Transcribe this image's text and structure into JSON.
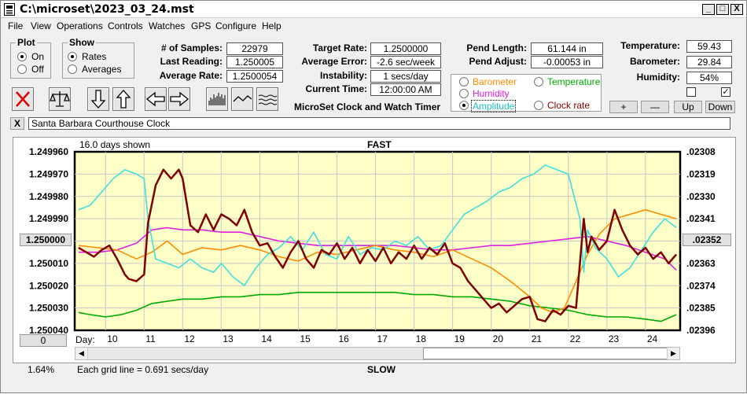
{
  "window": {
    "title": "C:\\microset\\2023_03_24.mst"
  },
  "titlebar_buttons": [
    "_",
    "□",
    "X"
  ],
  "menu": [
    "File",
    "View",
    "Operations",
    "Controls",
    "Watches",
    "GPS",
    "Configure",
    "Help"
  ],
  "plot_group": {
    "label": "Plot",
    "options": [
      "On",
      "Off"
    ],
    "selected": "On"
  },
  "show_group": {
    "label": "Show",
    "options": [
      "Rates",
      "Averages"
    ],
    "selected": "Rates"
  },
  "stats": {
    "samples_label": "# of Samples:",
    "samples": "22979",
    "last_reading_label": "Last Reading:",
    "last_reading": "1.250005",
    "average_rate_label": "Average Rate:",
    "average_rate": "1.2500054"
  },
  "target": {
    "target_rate_label": "Target Rate:",
    "target_rate": "1.2500000",
    "average_error_label": "Average Error:",
    "average_error": "-2.6 sec/week",
    "instability_label": "Instability:",
    "instability": "1 secs/day",
    "current_time_label": "Current Time:",
    "current_time": "12:00:00 AM"
  },
  "app_caption": "MicroSet Clock and Watch Timer",
  "pend": {
    "length_label": "Pend Length:",
    "length": "61.144 in",
    "adjust_label": "Pend Adjust:",
    "adjust": "-0.00053 in"
  },
  "env": {
    "temperature_label": "Temperature:",
    "temperature": "59.43",
    "barometer_label": "Barometer:",
    "barometer": "29.84",
    "humidity_label": "Humidity:",
    "humidity": "54%"
  },
  "env_checks": {
    "left_checked": false,
    "right_checked": true
  },
  "secondary_options": {
    "barometer": "Barometer",
    "temperature": "Temperature",
    "humidity": "Humidity",
    "amplitude": "Amplitude",
    "clock_rate": "Clock rate",
    "selected": "Amplitude"
  },
  "scale_buttons": {
    "plus": "+",
    "minus": "—",
    "up": "Up",
    "down": "Down"
  },
  "clock_name": "Santa Barbara Courthouse Clock",
  "close_x": "X",
  "plot": {
    "days_shown": "16.0 days shown",
    "top_label": "FAST",
    "bottom_label": "SLOW",
    "grid_note": "Each grid line = 0.691 secs/day",
    "percent": "1.64%",
    "left_button": "0",
    "center_left_button": "1.250000",
    "center_right_button": ".02352",
    "day_label": "Day:"
  },
  "colors": {
    "rate": "#800000",
    "barometer": "#ff8c00",
    "temperature": "#00aa00",
    "humidity": "#e020e0",
    "amplitude": "#40e0e0",
    "plot_bg": "#ffffc8"
  },
  "chart_data": {
    "type": "line",
    "xlabel": "Day:",
    "x_ticks": [
      10,
      11,
      12,
      13,
      14,
      15,
      16,
      17,
      18,
      19,
      20,
      21,
      22,
      23,
      24
    ],
    "xlim": [
      9.2,
      24.9
    ],
    "left_ticks": [
      "1.249960",
      "1.249970",
      "1.249980",
      "1.249990",
      "1.250000",
      "1.250010",
      "1.250020",
      "1.250030",
      "1.250040"
    ],
    "right_ticks": [
      ".02308",
      ".02319",
      ".02330",
      ".02341",
      ".02352",
      ".02363",
      ".02374",
      ".02385",
      ".02396"
    ],
    "ylim": [
      1.24996,
      1.25004
    ],
    "series": [
      {
        "name": "Rate",
        "color": "#800000",
        "x": [
          9.3,
          9.5,
          9.7,
          9.9,
          10.1,
          10.3,
          10.5,
          10.6,
          10.8,
          11.0,
          11.1,
          11.3,
          11.5,
          11.7,
          11.9,
          12.0,
          12.2,
          12.4,
          12.6,
          12.8,
          13.0,
          13.2,
          13.4,
          13.6,
          13.8,
          14.0,
          14.2,
          14.4,
          14.6,
          14.8,
          15.0,
          15.2,
          15.4,
          15.6,
          15.8,
          16.0,
          16.2,
          16.4,
          16.6,
          16.8,
          17.0,
          17.2,
          17.4,
          17.6,
          17.8,
          18.0,
          18.2,
          18.4,
          18.6,
          18.8,
          19.0,
          19.2,
          19.4,
          19.6,
          19.8,
          20.0,
          20.2,
          20.4,
          20.6,
          20.8,
          21.0,
          21.2,
          21.4,
          21.6,
          21.8,
          22.0,
          22.2,
          22.4,
          22.5,
          22.6,
          22.8,
          23.0,
          23.2,
          23.4,
          23.6,
          23.8,
          24.0,
          24.2,
          24.4,
          24.6,
          24.8
        ],
        "y": [
          1.250003,
          1.250005,
          1.250007,
          1.250004,
          1.250002,
          1.250008,
          1.250015,
          1.250017,
          1.250018,
          1.250015,
          1.249992,
          1.249975,
          1.249968,
          1.249972,
          1.249968,
          1.249972,
          1.249993,
          1.249996,
          1.249988,
          1.249995,
          1.249988,
          1.24999,
          1.249993,
          1.249986,
          1.249996,
          1.250002,
          1.250001,
          1.250007,
          1.250012,
          1.250005,
          1.25,
          1.250008,
          1.250012,
          1.250004,
          1.250006,
          1.250001,
          1.250008,
          1.250003,
          1.25001,
          1.250004,
          1.250009,
          1.250003,
          1.25001,
          1.250005,
          1.250008,
          1.250002,
          1.250008,
          1.250003,
          1.250006,
          1.250001,
          1.25001,
          1.250012,
          1.250018,
          1.250022,
          1.250026,
          1.25003,
          1.250028,
          1.250032,
          1.250029,
          1.250026,
          1.250025,
          1.250035,
          1.250036,
          1.250031,
          1.250033,
          1.250029,
          1.25003,
          1.24999,
          1.250005,
          1.249998,
          1.250004,
          1.25,
          1.249986,
          1.249995,
          1.250002,
          1.250006,
          1.250003,
          1.250008,
          1.250005,
          1.25001,
          1.250006
        ]
      },
      {
        "name": "Barometer",
        "color": "#ff8c00",
        "x": [
          9.3,
          9.8,
          10.3,
          10.8,
          11.2,
          11.6,
          12.0,
          12.5,
          13.0,
          13.5,
          14.0,
          14.5,
          15.0,
          15.5,
          16.0,
          16.5,
          17.0,
          17.5,
          18.0,
          18.5,
          19.0,
          19.5,
          20.0,
          20.5,
          21.0,
          21.3,
          21.6,
          21.9,
          22.2,
          22.5,
          22.8,
          23.2,
          23.6,
          24.0,
          24.4,
          24.8
        ],
        "y": [
          1.250002,
          1.250003,
          1.250004,
          1.250008,
          1.250005,
          1.25,
          1.250006,
          1.250003,
          1.250004,
          1.250002,
          1.250004,
          1.250007,
          1.250009,
          1.250005,
          1.250006,
          1.250004,
          1.250002,
          1.250004,
          1.250005,
          1.250007,
          1.250004,
          1.250008,
          1.250012,
          1.250018,
          1.250025,
          1.25003,
          1.250032,
          1.25003,
          1.250018,
          1.250006,
          1.249997,
          1.24999,
          1.249988,
          1.249986,
          1.249988,
          1.24999
        ]
      },
      {
        "name": "Temperature",
        "color": "#00aa00",
        "x": [
          9.3,
          9.6,
          10.0,
          10.4,
          10.8,
          11.2,
          11.6,
          12.0,
          12.5,
          13.0,
          13.5,
          14.0,
          14.5,
          15.0,
          15.5,
          16.0,
          16.5,
          17.0,
          17.5,
          18.0,
          18.5,
          19.0,
          19.5,
          20.0,
          20.5,
          21.0,
          21.5,
          22.0,
          22.5,
          23.0,
          23.5,
          24.0,
          24.4,
          24.8
        ],
        "y": [
          1.250032,
          1.250033,
          1.250034,
          1.250033,
          1.250031,
          1.250028,
          1.250027,
          1.250026,
          1.250026,
          1.250025,
          1.250025,
          1.250024,
          1.250024,
          1.250023,
          1.250023,
          1.250023,
          1.250023,
          1.250023,
          1.250023,
          1.250024,
          1.250024,
          1.250025,
          1.250025,
          1.250026,
          1.250027,
          1.250029,
          1.25003,
          1.250031,
          1.250033,
          1.250034,
          1.250034,
          1.250035,
          1.250036,
          1.250033
        ]
      },
      {
        "name": "Humidity",
        "color": "#e020e0",
        "x": [
          9.3,
          9.8,
          10.3,
          10.8,
          11.2,
          11.6,
          12.0,
          12.5,
          13.0,
          13.5,
          14.0,
          14.5,
          15.0,
          15.5,
          16.0,
          16.5,
          17.0,
          17.5,
          18.0,
          18.5,
          19.0,
          19.5,
          20.0,
          20.5,
          21.0,
          21.5,
          22.0,
          22.5,
          23.0,
          23.5,
          24.0,
          24.5,
          24.8
        ],
        "y": [
          1.250005,
          1.250005,
          1.250004,
          1.250001,
          1.249995,
          1.249994,
          1.249995,
          1.249995,
          1.249996,
          1.249996,
          1.249998,
          1.25,
          1.250001,
          1.250002,
          1.250002,
          1.250002,
          1.250002,
          1.250002,
          1.250003,
          1.250004,
          1.250004,
          1.250003,
          1.250002,
          1.250002,
          1.250001,
          1.25,
          1.249999,
          1.249998,
          1.25,
          1.250002,
          1.250005,
          1.250008,
          1.250013
        ]
      },
      {
        "name": "Amplitude",
        "color": "#40e0e0",
        "x": [
          9.3,
          9.6,
          9.9,
          10.2,
          10.5,
          10.8,
          11.0,
          11.1,
          11.3,
          11.6,
          11.9,
          12.2,
          12.5,
          12.8,
          13.0,
          13.3,
          13.6,
          13.9,
          14.2,
          14.5,
          14.8,
          15.1,
          15.4,
          15.7,
          16.0,
          16.3,
          16.6,
          16.9,
          17.2,
          17.5,
          17.8,
          18.1,
          18.4,
          18.7,
          19.0,
          19.3,
          19.6,
          19.9,
          20.2,
          20.5,
          20.8,
          21.1,
          21.4,
          21.7,
          22.0,
          22.3,
          22.4,
          22.5,
          22.7,
          23.0,
          23.3,
          23.6,
          23.9,
          24.2,
          24.5,
          24.8
        ],
        "y": [
          1.249986,
          1.249984,
          1.249978,
          1.249972,
          1.249968,
          1.24997,
          1.249972,
          1.24999,
          1.250008,
          1.25001,
          1.250012,
          1.250008,
          1.250012,
          1.250014,
          1.25001,
          1.250016,
          1.25002,
          1.250012,
          1.250006,
          1.250003,
          1.249998,
          1.250004,
          1.249996,
          1.250006,
          1.250008,
          1.249998,
          1.250006,
          1.250003,
          1.250004,
          1.25,
          1.250002,
          1.249998,
          1.250004,
          1.250002,
          1.249995,
          1.249988,
          1.249985,
          1.249982,
          1.249978,
          1.249976,
          1.249972,
          1.24997,
          1.249966,
          1.249968,
          1.24997,
          1.24999,
          1.250014,
          1.249995,
          1.250003,
          1.250008,
          1.250016,
          1.250012,
          1.250004,
          1.249996,
          1.24999,
          1.249994
        ]
      }
    ]
  }
}
